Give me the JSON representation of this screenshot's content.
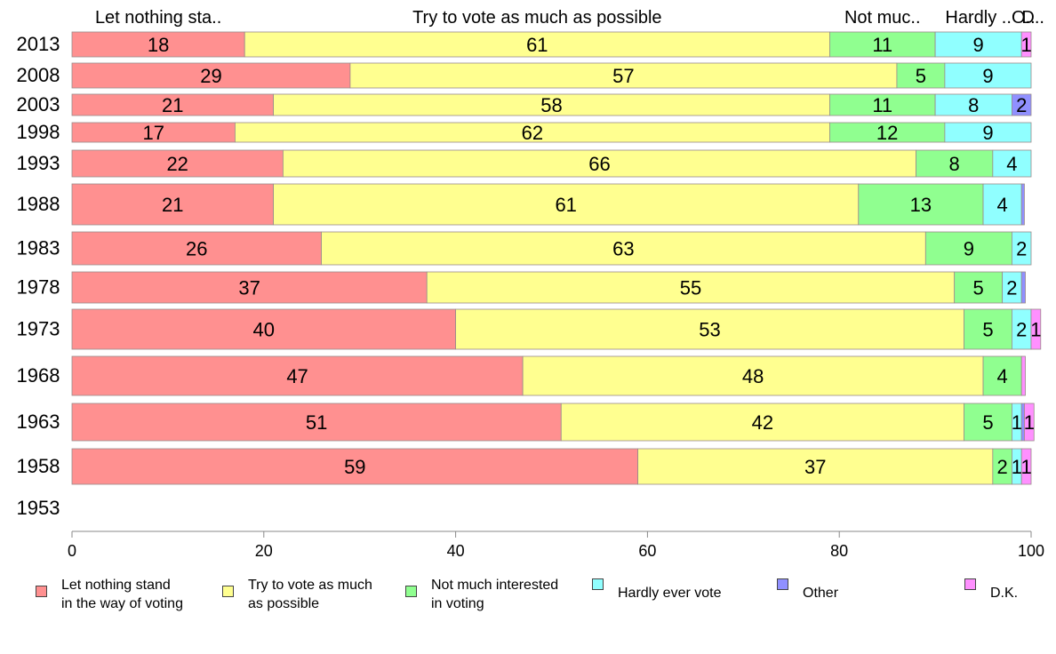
{
  "chart_data": {
    "type": "bar",
    "orientation": "horizontal",
    "stacked": true,
    "title": "",
    "xlabel": "",
    "ylabel": "",
    "xlim": [
      0,
      100
    ],
    "x_ticks": [
      "0",
      "20",
      "40",
      "60",
      "80",
      "100"
    ],
    "categories": [
      "2013",
      "2008",
      "2003",
      "1998",
      "1993",
      "1988",
      "1983",
      "1978",
      "1973",
      "1968",
      "1963",
      "1958",
      "1953"
    ],
    "series": [
      {
        "name": "Let nothing stand\nin the way of voting",
        "top_label": "Let nothing sta..",
        "color": "#ff9090",
        "values": [
          18,
          29,
          21,
          17,
          22,
          21,
          26,
          37,
          40,
          47,
          51,
          59,
          null
        ],
        "labels": [
          "18",
          "29",
          "21",
          "17",
          "22",
          "21",
          "26",
          "37",
          "40",
          "47",
          "51",
          "59",
          ""
        ]
      },
      {
        "name": "Try to vote as much\nas possible",
        "top_label": "Try to vote as much as possible",
        "color": "#ffff90",
        "values": [
          61,
          57,
          58,
          62,
          66,
          61,
          63,
          55,
          53,
          48,
          42,
          37,
          null
        ],
        "labels": [
          "61",
          "57",
          "58",
          "62",
          "66",
          "61",
          "63",
          "55",
          "53",
          "48",
          "42",
          "37",
          ""
        ]
      },
      {
        "name": "Not much interested\nin voting",
        "top_label": "Not muc..",
        "color": "#90ff90",
        "values": [
          11,
          5,
          11,
          12,
          8,
          13,
          9,
          5,
          5,
          4,
          5,
          2,
          null
        ],
        "labels": [
          "11",
          "5",
          "11",
          "12",
          "8",
          "13",
          "9",
          "5",
          "5",
          "4",
          "5",
          "2",
          ""
        ]
      },
      {
        "name": "Hardly ever vote",
        "top_label": "Hardly ..",
        "color": "#90ffff",
        "values": [
          9,
          9,
          8,
          9,
          4,
          4,
          2,
          2,
          2,
          0,
          1,
          1,
          null
        ],
        "labels": [
          "9",
          "9",
          "8",
          "9",
          "4",
          "4",
          "2",
          "2",
          "2",
          "",
          "1",
          "1",
          ""
        ]
      },
      {
        "name": "Other",
        "top_label": "O..",
        "color": "#9090ff",
        "values": [
          0,
          0,
          2,
          0,
          0,
          0.3,
          0,
          0.4,
          0,
          0,
          0.3,
          0,
          null
        ],
        "labels": [
          "",
          "",
          "2",
          "",
          "",
          "",
          "",
          "",
          "",
          "",
          "",
          "",
          ""
        ]
      },
      {
        "name": "D.K.",
        "top_label": "D..",
        "color": "#ff90ff",
        "values": [
          1,
          0,
          0,
          0,
          0,
          0,
          0,
          0,
          1,
          0.4,
          1,
          1,
          null
        ],
        "labels": [
          "1",
          "",
          "",
          "",
          "",
          "",
          "",
          "",
          "1",
          "",
          "1",
          "1",
          ""
        ]
      }
    ]
  }
}
